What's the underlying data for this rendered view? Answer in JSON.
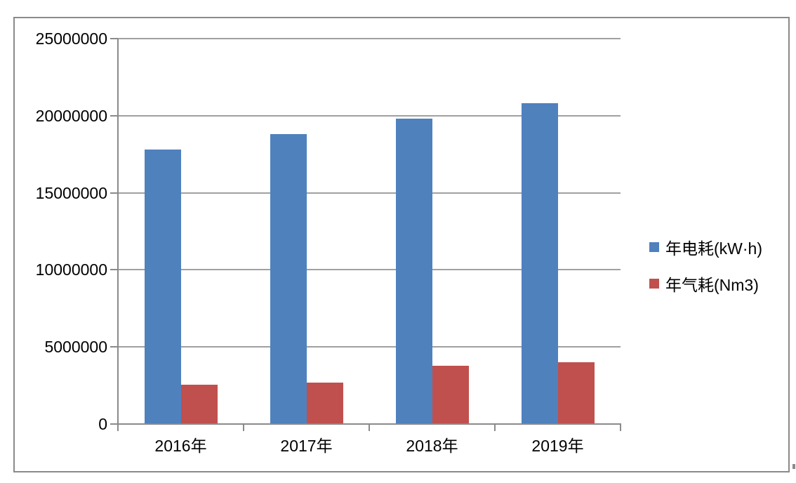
{
  "chart_data": {
    "type": "bar",
    "title": "",
    "categories": [
      "2016年",
      "2017年",
      "2018年",
      "2019年"
    ],
    "series": [
      {
        "name": "年电耗(kW·h)",
        "color": "#4F81BD",
        "values": [
          17800000,
          18800000,
          19800000,
          20800000
        ]
      },
      {
        "name": "年气耗(Nm3)",
        "color": "#C0504D",
        "values": [
          2550000,
          2700000,
          3800000,
          4000000
        ]
      }
    ],
    "xlabel": "",
    "ylabel": "",
    "ylim": [
      0,
      25000000
    ],
    "y_tick_step": 5000000,
    "y_tick_labels": [
      "0",
      "5000000",
      "10000000",
      "15000000",
      "20000000",
      "25000000"
    ],
    "grid": true,
    "legend_position": "right"
  },
  "colors": {
    "axis": "#8A8A8A",
    "gridline": "#A0A0A0",
    "border": "#8A8A8A",
    "background": "#FFFFFF",
    "text": "#000000"
  }
}
